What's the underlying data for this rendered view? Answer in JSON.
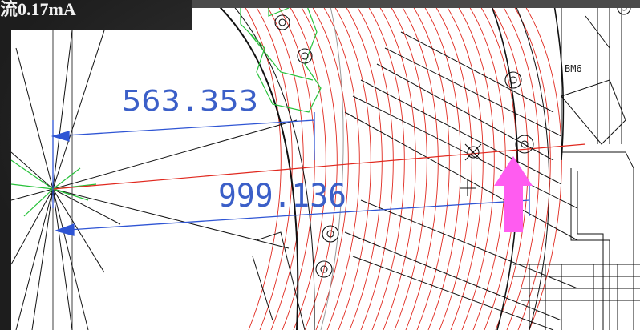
{
  "slide": {
    "title": "流0.17mA"
  },
  "drawing": {
    "dimension_1": "563.353",
    "dimension_2": "999.136",
    "part_label": "BM6"
  },
  "colors": {
    "dimension_line": "#2f55d4",
    "red_contours": "#e0281e",
    "green_parts": "#27c13a",
    "outline": "#111111",
    "arrow": "#ff5cf0"
  }
}
